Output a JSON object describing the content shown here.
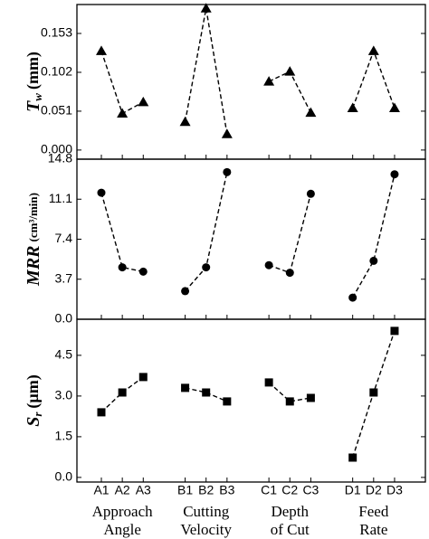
{
  "chart_data": [
    {
      "type": "line",
      "marker": "triangle",
      "color": "#000000",
      "ylabel": {
        "main": "T",
        "sub": "w",
        "unit": "(mm)"
      },
      "values": [
        0.13,
        0.048,
        0.063,
        null,
        0.037,
        0.186,
        0.021,
        null,
        0.09,
        0.103,
        0.049,
        null,
        0.055,
        0.13,
        0.055
      ],
      "ylim": [
        -0.012,
        0.191
      ],
      "yticks": [
        {
          "value": 0,
          "label": "0.000"
        },
        0.051,
        0.102,
        0.153
      ]
    },
    {
      "type": "line",
      "marker": "circle",
      "color": "#000000",
      "ylabel": {
        "main": "MRR",
        "unit": "(cm³/min)"
      },
      "values": [
        11.7,
        4.8,
        4.4,
        null,
        2.6,
        4.8,
        13.6,
        null,
        5.0,
        4.3,
        11.6,
        null,
        2.0,
        5.4,
        13.4
      ],
      "ylim": [
        0,
        14.8
      ],
      "yticks": [
        {
          "value": 0,
          "label": "0.0"
        },
        3.7,
        7.4,
        11.1,
        14.8
      ]
    },
    {
      "type": "line",
      "marker": "square",
      "color": "#000000",
      "ylabel": {
        "main": "S",
        "sub": "r",
        "unit": "(µm)"
      },
      "categories": [
        "A1",
        "A2",
        "A3",
        null,
        "B1",
        "B2",
        "B3",
        null,
        "C1",
        "C2",
        "C3",
        null,
        "D1",
        "D2",
        "D3"
      ],
      "groups": [
        [
          "Approach",
          "Angle"
        ],
        [
          "Cutting",
          "Velocity"
        ],
        [
          "Depth",
          "of Cut"
        ],
        [
          "Feed",
          "Rate"
        ]
      ],
      "values": [
        2.4,
        3.13,
        3.7,
        null,
        3.3,
        3.13,
        2.8,
        null,
        3.5,
        2.8,
        2.93,
        null,
        0.73,
        3.13,
        5.4
      ],
      "ylim": [
        -0.17,
        5.83
      ],
      "yticks": [
        {
          "value": 0,
          "label": "0.0"
        },
        1.5,
        {
          "value": 3,
          "label": "3.0"
        },
        4.5
      ]
    }
  ]
}
